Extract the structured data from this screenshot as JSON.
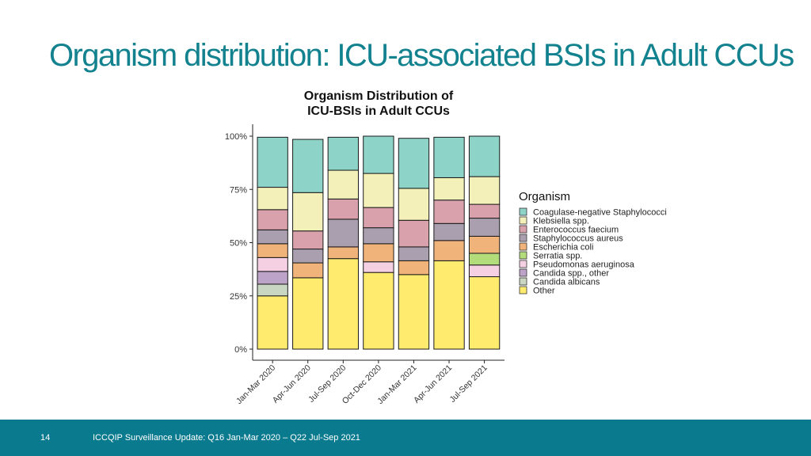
{
  "slide": {
    "title": "Organism distribution: ICU-associated BSIs in Adult CCUs"
  },
  "footer": {
    "page_number": "14",
    "text": "ICCQIP Surveillance Update: Q16 Jan-Mar 2020 – Q22 Jul-Sep 2021"
  },
  "chart_data": {
    "type": "bar",
    "stacked": true,
    "title_lines": [
      "Organism Distribution of",
      "ICU-BSIs in Adult CCUs"
    ],
    "xlabel": "",
    "ylabel": "",
    "ylim": [
      0,
      100
    ],
    "y_ticks": [
      "0%",
      "25%",
      "50%",
      "75%",
      "100%"
    ],
    "categories": [
      "Jan-Mar 2020",
      "Apr-Jun 2020",
      "Jul-Sep 2020",
      "Oct-Dec 2020",
      "Jan-Mar 2021",
      "Apr-Jun 2021",
      "Jul-Sep 2021"
    ],
    "legend_title": "Organism",
    "legend_position": "right",
    "grid": false,
    "series": [
      {
        "name": "Coagulase-negative Staphylococci",
        "color": "#8ed3c7",
        "values": [
          23.5,
          25,
          15.5,
          17.5,
          23.5,
          19,
          19
        ]
      },
      {
        "name": "Klebsiella spp.",
        "color": "#f3f1b9",
        "values": [
          10.5,
          18,
          13.5,
          16,
          15,
          10.5,
          13
        ]
      },
      {
        "name": "Enterococcus faecium",
        "color": "#d8a1ab",
        "values": [
          9.5,
          8.5,
          9.5,
          9.5,
          12.5,
          11,
          6.5
        ]
      },
      {
        "name": "Staphylococcus aureus",
        "color": "#aa9fae",
        "values": [
          6.5,
          6.5,
          13,
          7.5,
          6.5,
          8,
          8.5
        ]
      },
      {
        "name": "Escherichia coli",
        "color": "#f0b37a",
        "values": [
          6.5,
          7,
          5.5,
          8.5,
          6.5,
          9.5,
          8
        ]
      },
      {
        "name": "Serratia spp.",
        "color": "#b3dc7a",
        "values": [
          0,
          0,
          0,
          0,
          0,
          0,
          5.5
        ]
      },
      {
        "name": "Pseudomonas aeruginosa",
        "color": "#f5cfe2",
        "values": [
          6.5,
          0,
          0,
          5,
          0,
          0,
          5.5
        ]
      },
      {
        "name": "Candida spp., other",
        "color": "#bea3c8",
        "values": [
          6,
          0,
          0,
          0,
          0,
          0,
          0
        ]
      },
      {
        "name": "Candida albicans",
        "color": "#c8d6c2",
        "values": [
          5.5,
          0,
          0,
          0,
          0,
          0,
          0
        ]
      },
      {
        "name": "Other",
        "color": "#ffec6f",
        "values": [
          25,
          33.5,
          42.5,
          36,
          35,
          41.5,
          34
        ]
      }
    ]
  }
}
